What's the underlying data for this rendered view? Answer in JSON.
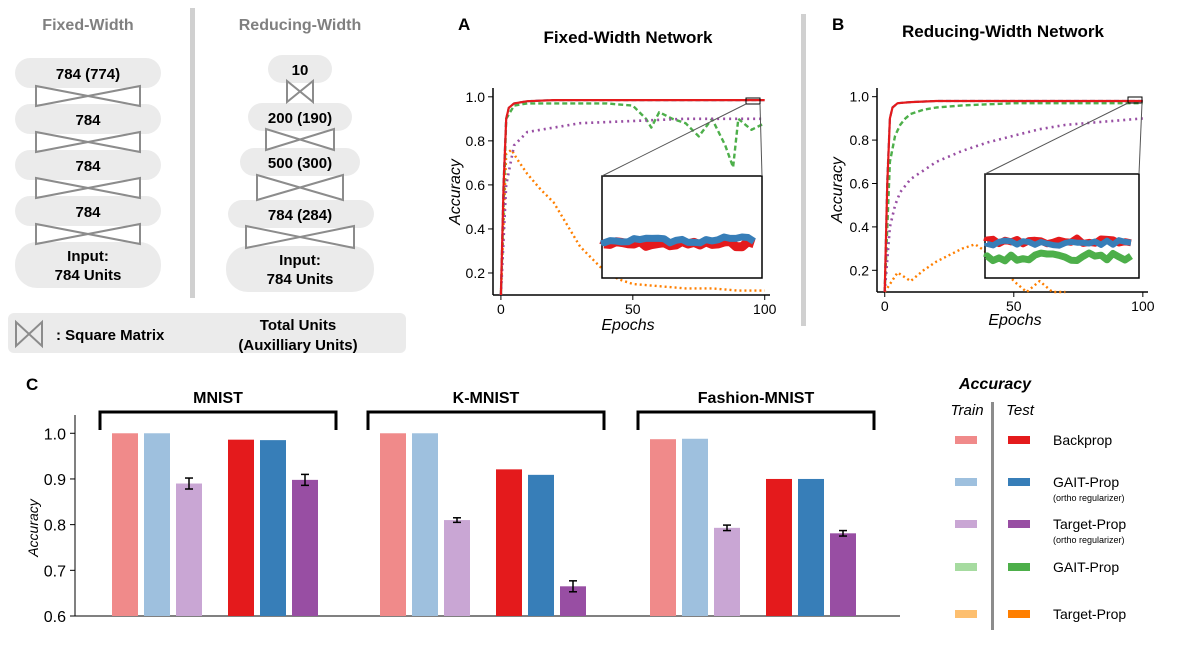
{
  "architecture": {
    "fixed_title": "Fixed-Width",
    "reducing_title": "Reducing-Width",
    "fixed_layers": [
      "784 (774)",
      "784",
      "784",
      "784"
    ],
    "fixed_input": [
      "Input:",
      "784 Units"
    ],
    "reducing_layers": [
      "10",
      "200 (190)",
      "500 (300)",
      "784 (284)"
    ],
    "reducing_input": [
      "Input:",
      "784 Units"
    ],
    "legend_square": ": Square Matrix",
    "legend_total": [
      "Total Units",
      "(Auxilliary Units)"
    ]
  },
  "panel_labels": {
    "a": "A",
    "b": "B",
    "c": "C"
  },
  "colors": {
    "backprop_train": "#f08a8a",
    "backprop_test": "#e41a1c",
    "gait_ortho_train": "#9ec0de",
    "gait_ortho_test": "#377eb8",
    "target_ortho_train": "#c9a6d4",
    "target_ortho_test": "#984ea3",
    "gait_train": "#a6dba0",
    "gait_test": "#4daf4a",
    "target_train": "#fdbf6f",
    "target_test": "#ff7f00"
  },
  "chart_data": [
    {
      "type": "line",
      "title": "Fixed-Width Network",
      "xlabel": "Epochs",
      "ylabel": "Accuracy",
      "xlim": [
        -3,
        102
      ],
      "ylim": [
        0.1,
        1.04
      ],
      "xticks": [
        "0",
        "50",
        "100"
      ],
      "yticks": [
        "0.2",
        "0.4",
        "0.6",
        "0.8",
        "1.0"
      ],
      "series": [
        {
          "key": "backprop",
          "x": [
            0,
            1,
            2,
            3,
            5,
            10,
            20,
            50,
            100
          ],
          "y": [
            0.1,
            0.6,
            0.9,
            0.95,
            0.97,
            0.98,
            0.985,
            0.985,
            0.985
          ]
        },
        {
          "key": "gait_ortho",
          "x": [
            0,
            1,
            2,
            3,
            5,
            10,
            20,
            50,
            100
          ],
          "y": [
            0.1,
            0.62,
            0.9,
            0.95,
            0.97,
            0.98,
            0.985,
            0.985,
            0.985
          ]
        },
        {
          "key": "target_ortho",
          "x": [
            0,
            2,
            5,
            10,
            20,
            30,
            50,
            70,
            100
          ],
          "y": [
            0.1,
            0.6,
            0.78,
            0.84,
            0.86,
            0.88,
            0.89,
            0.9,
            0.9
          ]
        },
        {
          "key": "gait",
          "x": [
            0,
            2,
            5,
            10,
            20,
            40,
            50,
            55,
            57,
            60,
            65,
            70,
            75,
            80,
            85,
            88,
            90,
            95,
            100
          ],
          "y": [
            0.1,
            0.9,
            0.96,
            0.97,
            0.97,
            0.97,
            0.96,
            0.9,
            0.86,
            0.93,
            0.9,
            0.88,
            0.82,
            0.9,
            0.78,
            0.68,
            0.9,
            0.85,
            0.88
          ]
        },
        {
          "key": "target",
          "x": [
            0,
            2,
            4,
            6,
            10,
            15,
            20,
            25,
            30,
            35,
            40,
            45,
            50,
            60,
            70,
            80,
            90,
            100
          ],
          "y": [
            0.1,
            0.74,
            0.76,
            0.72,
            0.65,
            0.58,
            0.52,
            0.42,
            0.32,
            0.26,
            0.2,
            0.17,
            0.15,
            0.14,
            0.13,
            0.13,
            0.12,
            0.12
          ]
        }
      ]
    },
    {
      "type": "line",
      "title": "Reducing-Width Network",
      "xlabel": "Epochs",
      "ylabel": "Accuracy",
      "xlim": [
        -3,
        102
      ],
      "ylim": [
        0.1,
        1.04
      ],
      "xticks": [
        "0",
        "50",
        "100"
      ],
      "yticks": [
        "0.2",
        "0.4",
        "0.6",
        "0.8",
        "1.0"
      ],
      "series": [
        {
          "key": "backprop",
          "x": [
            0,
            1,
            2,
            3,
            5,
            10,
            20,
            50,
            100
          ],
          "y": [
            0.1,
            0.6,
            0.9,
            0.95,
            0.97,
            0.975,
            0.98,
            0.98,
            0.98
          ]
        },
        {
          "key": "gait_ortho",
          "x": [
            0,
            1,
            2,
            3,
            5,
            10,
            20,
            50,
            100
          ],
          "y": [
            0.1,
            0.62,
            0.9,
            0.95,
            0.97,
            0.975,
            0.98,
            0.98,
            0.98
          ]
        },
        {
          "key": "gait",
          "x": [
            0,
            2,
            4,
            6,
            8,
            10,
            15,
            20,
            30,
            50,
            100
          ],
          "y": [
            0.1,
            0.7,
            0.82,
            0.87,
            0.9,
            0.92,
            0.94,
            0.95,
            0.96,
            0.97,
            0.97
          ]
        },
        {
          "key": "target_ortho",
          "x": [
            0,
            2,
            4,
            6,
            10,
            15,
            20,
            30,
            40,
            50,
            60,
            70,
            80,
            90,
            100
          ],
          "y": [
            0.1,
            0.4,
            0.5,
            0.56,
            0.62,
            0.66,
            0.7,
            0.75,
            0.79,
            0.82,
            0.85,
            0.87,
            0.88,
            0.89,
            0.9
          ]
        },
        {
          "key": "target",
          "x": [
            0,
            5,
            10,
            15,
            20,
            25,
            30,
            35,
            40,
            45,
            50,
            55,
            60,
            65,
            70
          ],
          "y": [
            0.1,
            0.19,
            0.15,
            0.2,
            0.24,
            0.27,
            0.3,
            0.32,
            0.28,
            0.22,
            0.15,
            0.1,
            0.15,
            0.1,
            0.1
          ]
        }
      ]
    },
    {
      "type": "bar",
      "ylabel": "Accuracy",
      "ylim": [
        0.6,
        1.04
      ],
      "yticks": [
        "0.6",
        "0.7",
        "0.8",
        "0.9",
        "1.0"
      ],
      "groups": [
        {
          "name": "MNIST",
          "train": [
            {
              "key": "backprop",
              "value": 1.0,
              "err": 0.0
            },
            {
              "key": "gait_ortho",
              "value": 1.0,
              "err": 0.0
            },
            {
              "key": "target_ortho",
              "value": 0.89,
              "err": 0.012
            }
          ],
          "test": [
            {
              "key": "backprop",
              "value": 0.986,
              "err": 0.0
            },
            {
              "key": "gait_ortho",
              "value": 0.985,
              "err": 0.0
            },
            {
              "key": "target_ortho",
              "value": 0.898,
              "err": 0.012
            }
          ]
        },
        {
          "name": "K-MNIST",
          "train": [
            {
              "key": "backprop",
              "value": 1.0,
              "err": 0.0
            },
            {
              "key": "gait_ortho",
              "value": 1.0,
              "err": 0.0
            },
            {
              "key": "target_ortho",
              "value": 0.81,
              "err": 0.005
            }
          ],
          "test": [
            {
              "key": "backprop",
              "value": 0.921,
              "err": 0.0
            },
            {
              "key": "gait_ortho",
              "value": 0.909,
              "err": 0.0
            },
            {
              "key": "target_ortho",
              "value": 0.665,
              "err": 0.012
            }
          ]
        },
        {
          "name": "Fashion-MNIST",
          "train": [
            {
              "key": "backprop",
              "value": 0.987,
              "err": 0.0
            },
            {
              "key": "gait_ortho",
              "value": 0.988,
              "err": 0.0
            },
            {
              "key": "target_ortho",
              "value": 0.793,
              "err": 0.006
            }
          ],
          "test": [
            {
              "key": "backprop",
              "value": 0.9,
              "err": 0.0
            },
            {
              "key": "gait_ortho",
              "value": 0.9,
              "err": 0.0
            },
            {
              "key": "target_ortho",
              "value": 0.781,
              "err": 0.006
            }
          ]
        }
      ]
    }
  ],
  "legend": {
    "title": "Accuracy",
    "train_label": "Train",
    "test_label": "Test",
    "entries": [
      {
        "key": "backprop",
        "label": "Backprop",
        "sublabel": ""
      },
      {
        "key": "gait_ortho",
        "label": "GAIT-Prop",
        "sublabel": "(ortho regularizer)"
      },
      {
        "key": "target_ortho",
        "label": "Target-Prop",
        "sublabel": "(ortho regularizer)"
      },
      {
        "key": "gait",
        "label": "GAIT-Prop",
        "sublabel": ""
      },
      {
        "key": "target",
        "label": "Target-Prop",
        "sublabel": ""
      }
    ]
  }
}
